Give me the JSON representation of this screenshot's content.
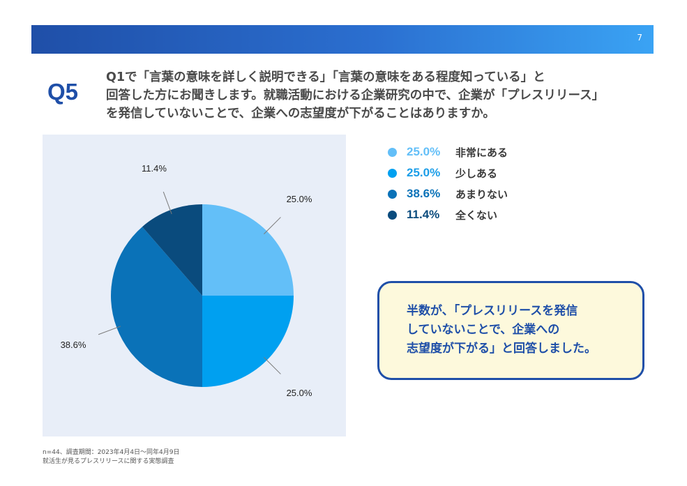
{
  "header": {
    "page_number": "7"
  },
  "question": {
    "label": "Q5",
    "lines": [
      "Q1で「言葉の意味を詳しく説明できる」「言葉の意味をある程度知っている」と",
      "回答した方にお聞きします。就職活動における企業研究の中で、企業が「プレスリリース」",
      "を発信していないことで、企業への志望度が下がることはありますか。"
    ]
  },
  "chart_data": {
    "type": "pie",
    "start_angle_deg": 0,
    "direction": "clockwise",
    "slices": [
      {
        "label": "非常にある",
        "value": 25.0,
        "display": "25.0%",
        "color": "#63bff8"
      },
      {
        "label": "少しある",
        "value": 25.0,
        "display": "25.0%",
        "color": "#00a0f0"
      },
      {
        "label": "あまりない",
        "value": 38.6,
        "display": "38.6%",
        "color": "#0a72b8"
      },
      {
        "label": "全くない",
        "value": 11.4,
        "display": "11.4%",
        "color": "#0a4b7d"
      }
    ],
    "legend_placement": "right"
  },
  "callout": {
    "lines": [
      "半数が、「プレスリリースを発信",
      "していないことで、企業への",
      "志望度が下がる」と回答しました。"
    ]
  },
  "footnote": {
    "lines": [
      "n=44、調査期間：2023年4月4日～同年4月9日",
      "就活生が見るプレスリリースに関する実態調査"
    ]
  }
}
